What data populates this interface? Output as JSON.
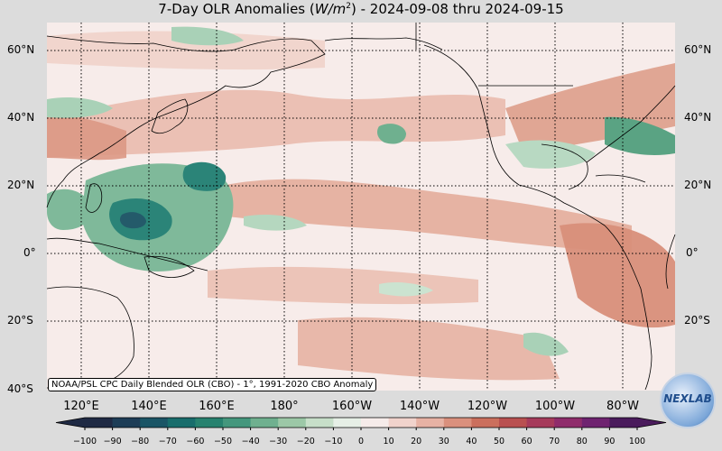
{
  "title": {
    "prefix": "7-Day OLR Anomalies (",
    "unit_base": "W/m",
    "unit_exp": "2",
    "suffix": ") - 2024-09-08 thru 2024-09-15"
  },
  "caption": "NOAA/PSL CPC Daily Blended OLR (CBO) - 1°, 1991-2020 CBO Anomaly",
  "logo_text": "NEXLAB",
  "lat_labels": [
    "60°N",
    "40°N",
    "20°N",
    "0°",
    "20°S",
    "40°S"
  ],
  "lon_labels": [
    "120°E",
    "140°E",
    "160°E",
    "180°",
    "160°W",
    "140°W",
    "120°W",
    "100°W",
    "80°W"
  ],
  "colorbar": {
    "ticks": [
      "−100",
      "−90",
      "−80",
      "−70",
      "−60",
      "−50",
      "−40",
      "−30",
      "−20",
      "−10",
      "0",
      "10",
      "20",
      "30",
      "40",
      "50",
      "60",
      "70",
      "80",
      "90",
      "100"
    ],
    "colors": [
      "#1f2a44",
      "#1d3d57",
      "#1a5566",
      "#186d6c",
      "#27826f",
      "#44977d",
      "#6fb08f",
      "#9cc8a7",
      "#c7dfc9",
      "#e6efe6",
      "#f6ecea",
      "#f1d3cc",
      "#e7b2a4",
      "#da907d",
      "#cb6f5d",
      "#b95050",
      "#a63b5b",
      "#8f2c6b",
      "#6f2370",
      "#4a1b5c"
    ]
  },
  "anomaly_colors": {
    "neutral": "#f7ecea",
    "light_red": "#ecc2b6",
    "red": "#dc9a86",
    "light_green": "#cbe3d0",
    "green": "#7fb99a",
    "dark_green": "#2b8478",
    "darkest": "#245a6a"
  }
}
